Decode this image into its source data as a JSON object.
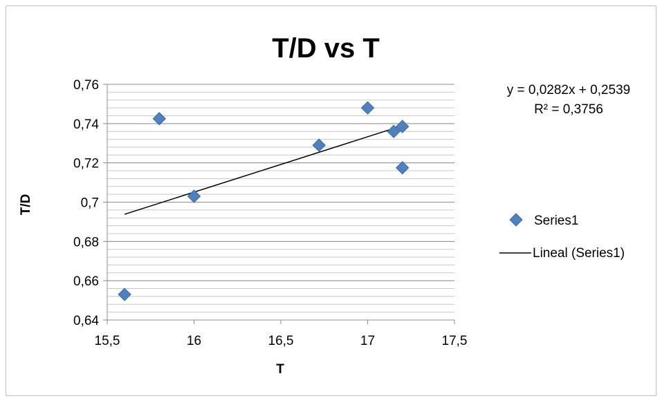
{
  "chart_data": {
    "type": "scatter",
    "title": "T/D vs T",
    "xlabel": "T",
    "ylabel": "T/D",
    "xlim": [
      15.5,
      17.5
    ],
    "ylim": [
      0.64,
      0.76
    ],
    "x_major_ticks": [
      15.5,
      16,
      16.5,
      17,
      17.5
    ],
    "x_tick_labels": [
      "15,5",
      "16",
      "16,5",
      "17",
      "17,5"
    ],
    "y_major_ticks": [
      0.64,
      0.66,
      0.68,
      0.7,
      0.72,
      0.74,
      0.76
    ],
    "y_tick_labels": [
      "0,64",
      "0,66",
      "0,68",
      "0,7",
      "0,72",
      "0,74",
      "0,76"
    ],
    "y_minor_step": 0.004,
    "grid": true,
    "legend_position": "right",
    "series": [
      {
        "name": "Series1",
        "marker": "diamond",
        "color": "#4f81bd",
        "points": [
          {
            "x": 15.6,
            "y": 0.653
          },
          {
            "x": 15.8,
            "y": 0.7425
          },
          {
            "x": 16.0,
            "y": 0.703
          },
          {
            "x": 16.72,
            "y": 0.729
          },
          {
            "x": 17.0,
            "y": 0.748
          },
          {
            "x": 17.15,
            "y": 0.736
          },
          {
            "x": 17.2,
            "y": 0.7385
          },
          {
            "x": 17.2,
            "y": 0.7175
          }
        ]
      }
    ],
    "trendline": {
      "name": "Lineal (Series1)",
      "type": "linear",
      "slope": 0.0282,
      "intercept": 0.2539,
      "x_range": [
        15.6,
        17.2
      ],
      "color": "#000000",
      "equation_label": "y = 0,0282x + 0,2539",
      "r2_label": "R² = 0,3756"
    }
  }
}
